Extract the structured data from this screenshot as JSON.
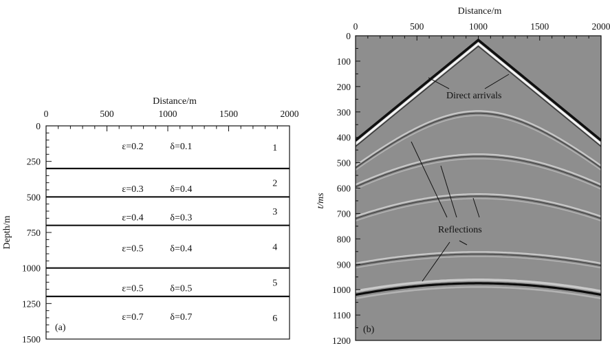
{
  "chart_data": [
    {
      "type": "layer_model",
      "panel_label": "(a)",
      "xlabel": "Distance/m",
      "ylabel": "Depth/m",
      "xlim": [
        0,
        2000
      ],
      "ylim": [
        0,
        1500
      ],
      "y_inverted": true,
      "x_ticks": [
        0,
        500,
        1000,
        1500,
        2000
      ],
      "y_ticks": [
        0,
        250,
        500,
        750,
        1000,
        1250,
        1500
      ],
      "x_tick_labels": [
        "0",
        "500",
        "1000",
        "1500",
        "2000"
      ],
      "y_tick_labels": [
        "0",
        "250",
        "500",
        "750",
        "1000",
        "1250",
        "1500"
      ],
      "interfaces": [
        300,
        500,
        700,
        1000,
        1200
      ],
      "layers": [
        {
          "number": "1",
          "top": 0,
          "bottom": 300,
          "epsilon_label": "ε=0.2",
          "delta_label": "δ=0.1"
        },
        {
          "number": "2",
          "top": 300,
          "bottom": 500,
          "epsilon_label": "ε=0.3",
          "delta_label": "δ=0.4"
        },
        {
          "number": "3",
          "top": 500,
          "bottom": 700,
          "epsilon_label": "ε=0.4",
          "delta_label": "δ=0.3"
        },
        {
          "number": "4",
          "top": 700,
          "bottom": 1000,
          "epsilon_label": "ε=0.5",
          "delta_label": "δ=0.4"
        },
        {
          "number": "5",
          "top": 1000,
          "bottom": 1200,
          "epsilon_label": "ε=0.5",
          "delta_label": "δ=0.5"
        },
        {
          "number": "6",
          "top": 1200,
          "bottom": 1500,
          "epsilon_label": "ε=0.7",
          "delta_label": "δ=0.7"
        }
      ]
    },
    {
      "type": "heatmap",
      "panel_label": "(b)",
      "xlabel": "Distance/m",
      "ylabel": "t/ms",
      "xlim": [
        0,
        2000
      ],
      "ylim": [
        0,
        1200
      ],
      "y_inverted": true,
      "x_ticks": [
        0,
        500,
        1000,
        1500,
        2000
      ],
      "y_ticks": [
        0,
        100,
        200,
        300,
        400,
        500,
        600,
        700,
        800,
        900,
        1000,
        1100,
        1200
      ],
      "x_tick_labels": [
        "0",
        "500",
        "1000",
        "1500",
        "2000"
      ],
      "y_tick_labels": [
        "0",
        "100",
        "200",
        "300",
        "400",
        "500",
        "600",
        "700",
        "800",
        "900",
        "1000",
        "1100",
        "1200"
      ],
      "source_x": 1000,
      "direct_arrival": {
        "apex_t": 25,
        "edge_t": 420
      },
      "reflections": [
        {
          "apex_t": 305,
          "edge_t": 520
        },
        {
          "apex_t": 475,
          "edge_t": 595
        },
        {
          "apex_t": 632,
          "edge_t": 720
        },
        {
          "apex_t": 860,
          "edge_t": 905
        },
        {
          "apex_t": 975,
          "edge_t": 1020
        }
      ],
      "annotations": {
        "direct": "Direct arrivals",
        "reflections": "Reflections"
      }
    }
  ]
}
